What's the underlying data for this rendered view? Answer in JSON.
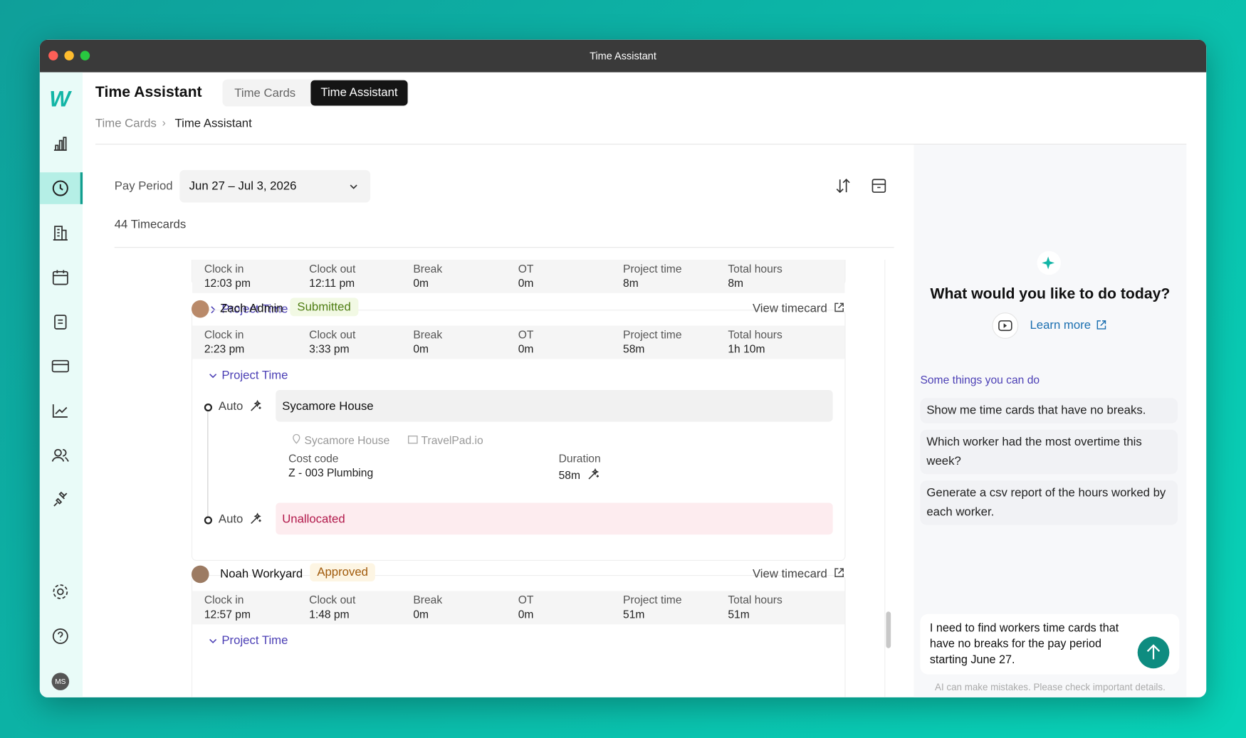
{
  "window_title": "Time Assistant",
  "header": {
    "title": "Time Assistant",
    "tabs": [
      "Time Cards",
      "Time Assistant"
    ],
    "breadcrumb": [
      "Time Cards",
      "Time Assistant"
    ]
  },
  "sidebar": {
    "logo": "W",
    "avatar": "MS"
  },
  "toolbar": {
    "pay_period_label": "Pay Period",
    "pay_period": "Jun 27 – Jul 3, 2026",
    "count": "44 Timecards"
  },
  "columns": [
    "Clock in",
    "Clock out",
    "Break",
    "OT",
    "Project time",
    "Total hours"
  ],
  "cards": [
    {
      "values": [
        "12:03 pm",
        "12:11 pm",
        "0m",
        "0m",
        "8m",
        "8m"
      ],
      "project_time": "Project Time"
    },
    {
      "worker": "Zach Admin",
      "status": "Submitted",
      "view": "View timecard",
      "values": [
        "2:23 pm",
        "3:33 pm",
        "0m",
        "0m",
        "58m",
        "1h 10m"
      ],
      "project_time": "Project Time",
      "entries": [
        {
          "mode": "Auto",
          "label": "Sycamore House",
          "location": "Sycamore House",
          "source": "TravelPad.io",
          "cost_code_label": "Cost code",
          "cost_code": "Z - 003 Plumbing",
          "duration_label": "Duration",
          "duration": "58m"
        },
        {
          "mode": "Auto",
          "label": "Unallocated"
        }
      ]
    },
    {
      "worker": "Noah Workyard",
      "status": "Approved",
      "view": "View timecard",
      "values": [
        "12:57 pm",
        "1:48 pm",
        "0m",
        "0m",
        "51m",
        "51m"
      ],
      "project_time": "Project Time"
    }
  ],
  "assistant": {
    "question": "What would you like to do today?",
    "learn_more": "Learn more",
    "suggestions_title": "Some things you can do",
    "suggestions": [
      "Show me time cards that have no breaks.",
      "Which worker had the most overtime this week?",
      "Generate a csv report of the hours worked by each worker."
    ],
    "input": "I need to find workers time cards that have no breaks for the pay period starting June 27.",
    "disclaimer": "AI can make mistakes. Please check important details."
  }
}
